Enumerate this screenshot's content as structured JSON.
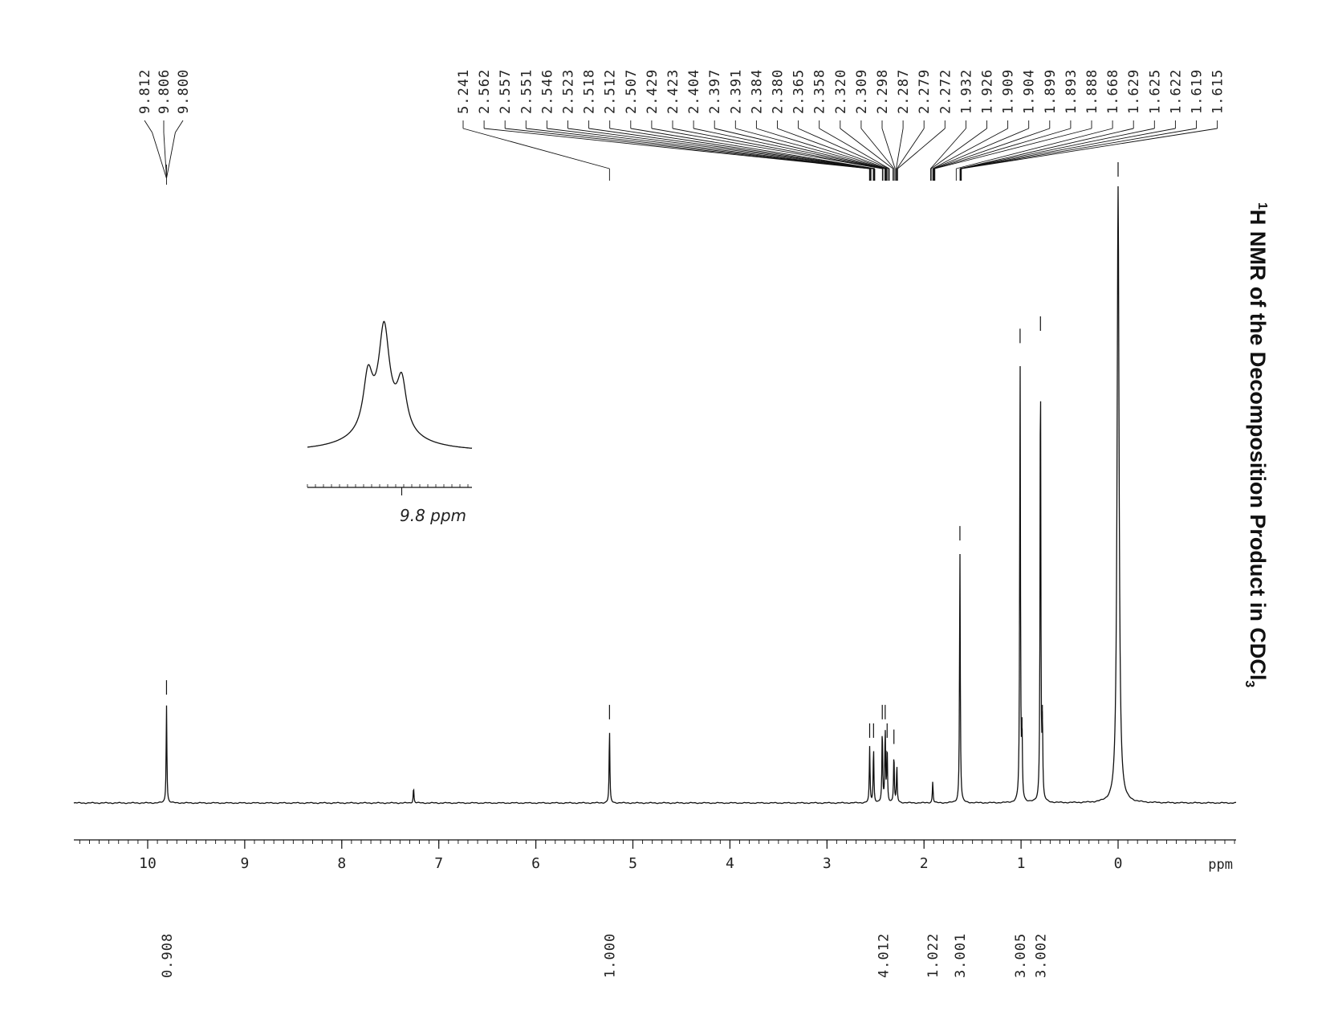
{
  "chart_data": {
    "type": "line",
    "title": "H NMR of the Decomposition Product in CDCl",
    "title_superscript": "1",
    "title_subscript": "3",
    "xlabel": "ppm",
    "xlim": [
      10.8,
      -1.2
    ],
    "x_reversed": true,
    "x_ticks": [
      "10",
      "9",
      "8",
      "7",
      "6",
      "5",
      "4",
      "3",
      "2",
      "1",
      "0"
    ],
    "grid": false,
    "peak_labels": [
      "9.812",
      "9.806",
      "9.800",
      "5.241",
      "2.562",
      "2.557",
      "2.551",
      "2.546",
      "2.523",
      "2.518",
      "2.512",
      "2.507",
      "2.429",
      "2.423",
      "2.404",
      "2.397",
      "2.391",
      "2.384",
      "2.380",
      "2.365",
      "2.358",
      "2.320",
      "2.309",
      "2.298",
      "2.287",
      "2.279",
      "2.272",
      "1.932",
      "1.926",
      "1.909",
      "1.904",
      "1.899",
      "1.893",
      "1.888",
      "1.668",
      "1.629",
      "1.625",
      "1.622",
      "1.619",
      "1.615"
    ],
    "peaks": [
      {
        "ppm": 9.806,
        "height": 0.16
      },
      {
        "ppm": 7.26,
        "height": 0.025
      },
      {
        "ppm": 5.241,
        "height": 0.12
      },
      {
        "ppm": 2.56,
        "height": 0.09
      },
      {
        "ppm": 2.52,
        "height": 0.09
      },
      {
        "ppm": 2.43,
        "height": 0.12
      },
      {
        "ppm": 2.4,
        "height": 0.12
      },
      {
        "ppm": 2.38,
        "height": 0.09
      },
      {
        "ppm": 2.31,
        "height": 0.08
      },
      {
        "ppm": 2.28,
        "height": 0.06
      },
      {
        "ppm": 1.91,
        "height": 0.035
      },
      {
        "ppm": 1.63,
        "height": 0.41
      },
      {
        "ppm": 1.01,
        "height": 0.73
      },
      {
        "ppm": 0.99,
        "height": 0.1
      },
      {
        "ppm": 0.8,
        "height": 0.75
      },
      {
        "ppm": 0.78,
        "height": 0.12
      },
      {
        "ppm": 0.0,
        "height": 1.0
      }
    ],
    "integrals": [
      {
        "ppm": 9.8,
        "label": "0.908"
      },
      {
        "ppm": 5.24,
        "label": "1.000"
      },
      {
        "ppm": 2.42,
        "label": "4.012"
      },
      {
        "ppm": 1.91,
        "label": "1.022"
      },
      {
        "ppm": 1.63,
        "label": "3.001"
      },
      {
        "ppm": 1.01,
        "label": "3.005"
      },
      {
        "ppm": 0.8,
        "label": "3.002"
      }
    ],
    "inset": {
      "label": "9.8 ppm",
      "center_ppm": 9.806,
      "multiplicity": "triplet"
    }
  }
}
